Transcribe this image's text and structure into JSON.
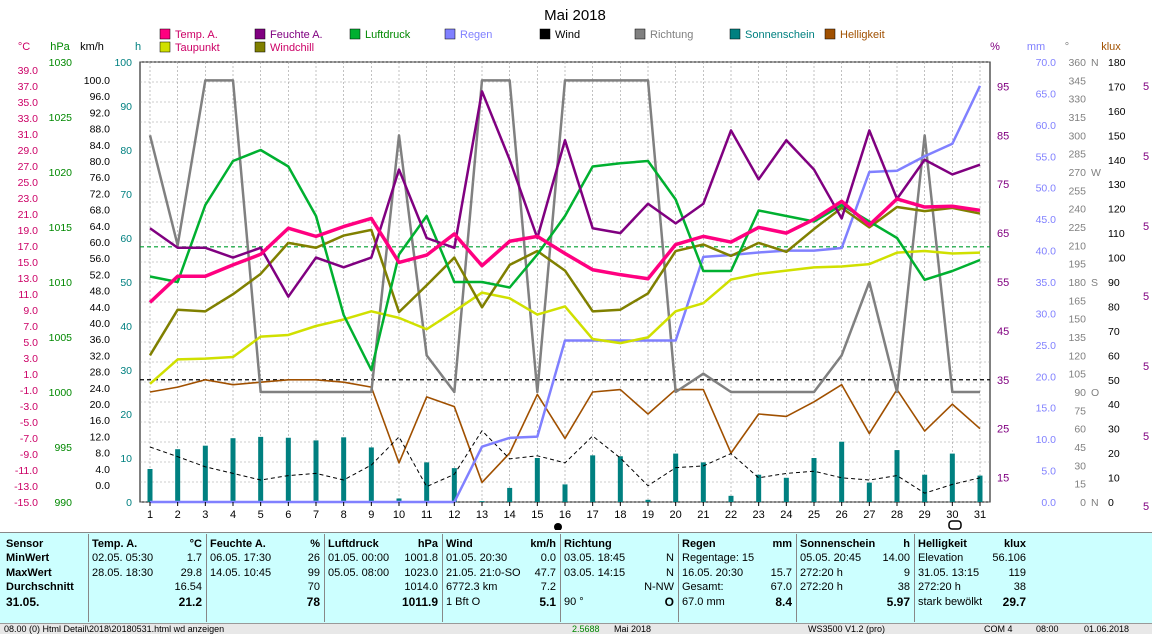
{
  "chart_data": {
    "type": "line",
    "title": "Mai 2018",
    "x": [
      1,
      2,
      3,
      4,
      5,
      6,
      7,
      8,
      9,
      10,
      11,
      12,
      13,
      14,
      15,
      16,
      17,
      18,
      19,
      20,
      21,
      22,
      23,
      24,
      25,
      26,
      27,
      28,
      29,
      30,
      31
    ],
    "legend": [
      {
        "name": "Temp. A.",
        "color": "#ff0080"
      },
      {
        "name": "Feuchte A.",
        "color": "#800080"
      },
      {
        "name": "Luftdruck",
        "color": "#00b030"
      },
      {
        "name": "Regen",
        "color": "#8080ff"
      },
      {
        "name": "Wind",
        "color": "#000000"
      },
      {
        "name": "Richtung",
        "color": "#808080"
      },
      {
        "name": "Sonnenschein",
        "color": "#008080"
      },
      {
        "name": "Helligkeit",
        "color": "#a05000"
      },
      {
        "name": "Taupunkt",
        "color": "#d0e000"
      },
      {
        "name": "Windchill",
        "color": "#808000"
      }
    ],
    "axes": {
      "temp": {
        "label": "°C",
        "color": "#cc0066",
        "min": -15,
        "max": 39,
        "ticks": [
          "39.0",
          "37.0",
          "35.0",
          "33.0",
          "31.0",
          "29.0",
          "27.0",
          "25.0",
          "23.0",
          "21.0",
          "19.0",
          "17.0",
          "15.0",
          "13.0",
          "11.0",
          "9.0",
          "7.0",
          "5.0",
          "3.0",
          "1.0",
          "-1.0",
          "-3.0",
          "-5.0",
          "-7.0",
          "-9.0",
          "-11.0",
          "-13.0",
          "-15.0"
        ]
      },
      "hpa": {
        "label": "hPa",
        "color": "#008800",
        "min": 990,
        "max": 1030,
        "ticks": [
          "1030",
          "1025",
          "1020",
          "1015",
          "1010",
          "1005",
          "1000",
          "995",
          "990"
        ]
      },
      "kmh": {
        "label": "km/h",
        "color": "#000000",
        "ticks": [
          "100.0",
          "96.0",
          "92.0",
          "88.0",
          "84.0",
          "80.0",
          "76.0",
          "72.0",
          "68.0",
          "64.0",
          "60.0",
          "56.0",
          "52.0",
          "48.0",
          "44.0",
          "40.0",
          "36.0",
          "32.0",
          "28.0",
          "24.0",
          "20.0",
          "16.0",
          "12.0",
          "8.0",
          "4.0",
          "0.0"
        ]
      },
      "h": {
        "label": "h",
        "color": "#008080",
        "ticks": [
          "100",
          "90",
          "80",
          "70",
          "60",
          "50",
          "40",
          "30",
          "20",
          "10",
          "0"
        ]
      },
      "pct": {
        "label": "%",
        "color": "#800080",
        "ticks": [
          "95",
          "85",
          "75",
          "65",
          "55",
          "45",
          "35",
          "25",
          "15"
        ]
      },
      "mm": {
        "label": "mm",
        "color": "#8080ff",
        "ticks": [
          "70.0",
          "65.0",
          "60.0",
          "55.0",
          "50.0",
          "45.0",
          "40.0",
          "35.0",
          "30.0",
          "25.0",
          "20.0",
          "15.0",
          "10.0",
          "5.0",
          "0.0"
        ]
      },
      "deg": {
        "label": "°",
        "color": "#808080",
        "ticks": [
          "360",
          "345",
          "330",
          "315",
          "300",
          "285",
          "270",
          "255",
          "240",
          "225",
          "210",
          "195",
          "180",
          "165",
          "150",
          "135",
          "120",
          "105",
          "90",
          "75",
          "60",
          "45",
          "30",
          "15",
          "0"
        ],
        "dir": [
          "N",
          "W",
          "S",
          "O",
          "N"
        ]
      },
      "klux": {
        "label": "klux",
        "color": "#a05000",
        "ticks": [
          "180",
          "170",
          "160",
          "150",
          "140",
          "130",
          "120",
          "110",
          "100",
          "90",
          "80",
          "70",
          "60",
          "50",
          "40",
          "30",
          "20",
          "10",
          "0"
        ]
      },
      "edge": [
        "5",
        "5",
        "5",
        "5",
        "5",
        "5",
        "5"
      ]
    },
    "series": [
      {
        "name": "Temp. A.",
        "axis": "temp",
        "values": [
          9.5,
          12.7,
          12.7,
          14.1,
          15.4,
          18.6,
          17.6,
          18.8,
          19.8,
          14.4,
          15.3,
          17.9,
          14.0,
          17.0,
          17.6,
          15.5,
          13.5,
          12.9,
          12.4,
          16.6,
          17.6,
          16.9,
          18.7,
          18.0,
          19.7,
          21.9,
          19.0,
          22.2,
          21.2,
          21.3,
          20.8
        ]
      },
      {
        "name": "Feuchte A.",
        "axis": "pct",
        "values": [
          66,
          62,
          62,
          60,
          62,
          52,
          60,
          58,
          60,
          78,
          64,
          62,
          94,
          80,
          64,
          84,
          66,
          65,
          71,
          67,
          71,
          86,
          76,
          84,
          78,
          68,
          86,
          72,
          80,
          77,
          79
        ]
      },
      {
        "name": "Luftdruck",
        "axis": "hpa",
        "values": [
          1010.5,
          1010.0,
          1017.0,
          1021.0,
          1022.0,
          1020.5,
          1016.0,
          1007.0,
          1002.0,
          1012.5,
          1016.0,
          1010.0,
          1010.0,
          1009.5,
          1012.5,
          1016.0,
          1020.5,
          1020.8,
          1021.0,
          1017.5,
          1011.0,
          1011.0,
          1016.5,
          1016.0,
          1015.5,
          1017.0,
          1015.5,
          1014.0,
          1010.2,
          1011.0,
          1012.0
        ]
      },
      {
        "name": "Taupunkt",
        "axis": "temp",
        "values": [
          -0.5,
          2.5,
          2.6,
          2.8,
          5.3,
          5.5,
          6.6,
          7.4,
          8.4,
          7.6,
          6.2,
          8.4,
          10.7,
          10.0,
          8.0,
          9.0,
          5.0,
          4.5,
          5.2,
          8.4,
          9.4,
          12.3,
          13.0,
          13.4,
          13.8,
          13.9,
          14.2,
          15.6,
          15.8,
          15.5,
          15.6
        ]
      },
      {
        "name": "Windchill",
        "axis": "temp",
        "values": [
          3.0,
          8.6,
          8.4,
          10.5,
          13.0,
          16.8,
          16.2,
          17.7,
          18.4,
          8.3,
          11.6,
          15.0,
          8.9,
          14.1,
          15.8,
          13.4,
          8.4,
          8.6,
          10.6,
          15.8,
          16.6,
          15.2,
          16.8,
          15.7,
          18.5,
          21.1,
          18.7,
          21.2,
          20.7,
          21.1,
          20.4
        ]
      },
      {
        "name": "Regen",
        "axis": "mm",
        "values": [
          0,
          0,
          0,
          0,
          0,
          0,
          0,
          0,
          0,
          0,
          0,
          0,
          8.8,
          10.2,
          10.4,
          25.7,
          25.7,
          25.7,
          25.7,
          25.7,
          39.0,
          39.3,
          39.7,
          40.0,
          40.0,
          40.4,
          52.5,
          52.7,
          55.0,
          57.0,
          66.2
        ]
      },
      {
        "name": "Wind",
        "axis": "kmh",
        "values": [
          12.5,
          10.3,
          8.0,
          6.5,
          5.0,
          6.0,
          6.5,
          5.0,
          8.4,
          14.8,
          3.5,
          6.3,
          16.2,
          9.8,
          10.5,
          8.9,
          15.0,
          10.0,
          3.7,
          7.8,
          8.2,
          11.0,
          5.5,
          6.5,
          7.0,
          5.5,
          5.0,
          6.0,
          2.0,
          4.0,
          5.5
        ]
      },
      {
        "name": "Richtung",
        "axis": "deg",
        "values": [
          300,
          210,
          345,
          345,
          90,
          90,
          90,
          90,
          90,
          300,
          120,
          90,
          345,
          345,
          90,
          345,
          345,
          345,
          345,
          90,
          105,
          90,
          90,
          90,
          90,
          120,
          180,
          90,
          300,
          90,
          90
        ]
      },
      {
        "name": "Helligkeit",
        "axis": "klux",
        "values": [
          45,
          47,
          50,
          48,
          49,
          50,
          50,
          49,
          47,
          16,
          43,
          39,
          8,
          20,
          44,
          26,
          45,
          46,
          36,
          46,
          46,
          20,
          36,
          35,
          41,
          48,
          28,
          46,
          29,
          40,
          30
        ]
      },
      {
        "name": "Sonnenschein",
        "axis": "h",
        "values": [
          7.5,
          12.0,
          12.8,
          14.5,
          14.8,
          14.6,
          14.0,
          14.7,
          12.4,
          0.8,
          9.0,
          7.7,
          0.2,
          3.2,
          10.0,
          4.0,
          10.6,
          10.4,
          0.5,
          11.0,
          9.0,
          1.4,
          6.2,
          5.5,
          10.0,
          13.7,
          4.4,
          11.8,
          6.2,
          11.0,
          6.0
        ]
      }
    ],
    "reference_lines": [
      {
        "axis": "hpa",
        "value": 1013.2,
        "style": "dashed",
        "color": "#00a030"
      },
      {
        "axis": "temp",
        "value": 0,
        "style": "dashed",
        "color": "#000000"
      }
    ],
    "grid": true
  },
  "stats": {
    "rows": [
      "Sensor",
      "MinWert",
      "MaxWert",
      "Durchschnitt",
      "31.05."
    ],
    "temp": {
      "head": "Temp. A.",
      "unit": "°C",
      "r1": [
        "02.05.  05:30",
        "1.7"
      ],
      "r2": [
        "28.05.  18:30",
        "29.8"
      ],
      "r3": [
        "",
        "16.54"
      ],
      "r4": [
        "",
        "21.2"
      ]
    },
    "feuchte": {
      "head": "Feuchte A.",
      "unit": "%",
      "r1": [
        "06.05.  17:30",
        "26"
      ],
      "r2": [
        "14.05.  10:45",
        "99"
      ],
      "r3": [
        "",
        "70"
      ],
      "r4": [
        "",
        "78"
      ]
    },
    "druck": {
      "head": "Luftdruck",
      "unit": "hPa",
      "r1": [
        "01.05.  00:00",
        "1001.8"
      ],
      "r2": [
        "05.05.  08:00",
        "1023.0"
      ],
      "r3": [
        "",
        "1014.0"
      ],
      "r4": [
        "",
        "1011.9"
      ]
    },
    "wind": {
      "head": "Wind",
      "unit": "km/h",
      "r1": [
        "01.05.  20:30",
        "0.0"
      ],
      "r2": [
        "21.05.  21:0-SO",
        "47.7"
      ],
      "r3": [
        "6772.3 km",
        "7.2"
      ],
      "r4": [
        "1 Bft O",
        "5.1"
      ]
    },
    "richtung": {
      "head": "Richtung",
      "unit": "",
      "r1": [
        "03.05.  18:45",
        "N"
      ],
      "r2": [
        "03.05.  14:15",
        "N"
      ],
      "r3": [
        "",
        "N-NW"
      ],
      "r4": [
        "90 °",
        "O"
      ]
    },
    "regen": {
      "head": "Regen",
      "unit": "mm",
      "r1": [
        "Regentage: 15",
        ""
      ],
      "r2": [
        "16.05.  20:30",
        "15.7"
      ],
      "r3": [
        "Gesamt:",
        "67.0"
      ],
      "r4": [
        "67.0 mm",
        "8.4"
      ]
    },
    "sonne": {
      "head": "Sonnenschein",
      "unit": "h",
      "r1": [
        "05.05.  20:45",
        "14.00"
      ],
      "r2": [
        "272:20 h",
        "9"
      ],
      "r3": [
        "272:20 h",
        "38"
      ],
      "r4": [
        "",
        "5.97"
      ]
    },
    "hell": {
      "head": "Helligkeit",
      "unit": "klux",
      "r1": [
        "Elevation",
        "56.106"
      ],
      "r2": [
        "31.05.  13:15",
        "119"
      ],
      "r3": [
        "272:20 h",
        "38"
      ],
      "r4": [
        "stark bewölkt",
        "29.7"
      ]
    }
  },
  "status": {
    "path": "08.00 (0)  Html Detail\\2018\\20180531.html  wd anzeigen",
    "value": "2.5688",
    "month": "Mai 2018",
    "version": "WS3500 V1.2  (pro)",
    "com": "COM 4",
    "time": "08:00",
    "date": "01.06.2018"
  }
}
